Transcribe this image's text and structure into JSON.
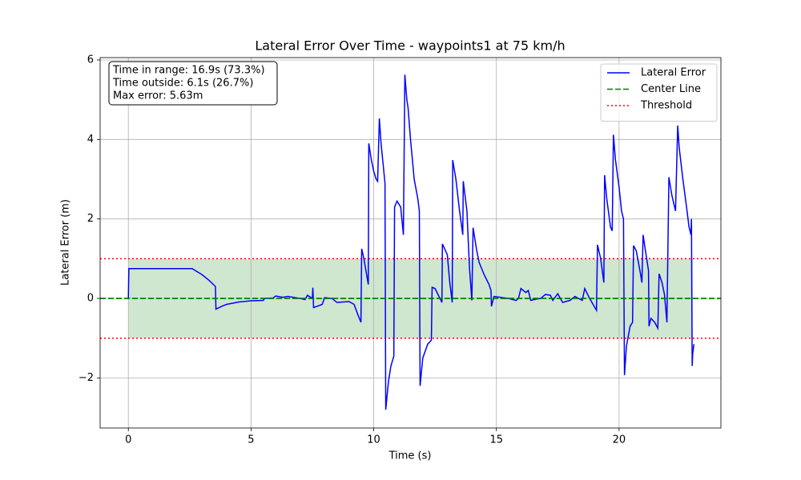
{
  "chart_data": {
    "type": "line",
    "title": "Lateral Error Over Time - waypoints1 at 75 km/h",
    "x_label": "Time (s)",
    "y_label": "Lateral Error (m)",
    "xlim": [
      -1.15,
      24.15
    ],
    "ylim": [
      -3.26,
      6.06
    ],
    "xticks": [
      0,
      5,
      10,
      15,
      20
    ],
    "yticks": [
      {
        "value": -2,
        "label": "−2"
      },
      0,
      2,
      4,
      6
    ],
    "grid": true,
    "legend": "upper right",
    "annotation": [
      "Time in range: 16.9s (73.3%)",
      "Time outside: 6.1s (26.7%)",
      "Max error: 5.63m"
    ],
    "band": {
      "x": [
        0,
        23
      ],
      "y": [
        -1,
        1
      ],
      "color": "#cfe6cf"
    },
    "x": [
      0,
      0.02,
      2.6,
      3.0,
      3.3,
      3.55,
      3.57,
      3.8,
      4.0,
      4.5,
      5.0,
      5.5,
      5.55,
      5.9,
      6.0,
      6.3,
      6.5,
      7.0,
      7.2,
      7.3,
      7.5,
      7.52,
      7.55,
      7.9,
      8.0,
      8.3,
      8.5,
      9.0,
      9.2,
      9.35,
      9.48,
      9.51,
      9.6,
      9.78,
      9.8,
      9.9,
      10.0,
      10.1,
      10.16,
      10.23,
      10.3,
      10.46,
      10.49,
      10.6,
      10.7,
      10.82,
      10.85,
      10.95,
      11.1,
      11.21,
      11.27,
      11.35,
      11.4,
      11.5,
      11.65,
      11.8,
      11.86,
      11.89,
      12.0,
      12.2,
      12.35,
      12.38,
      12.5,
      12.7,
      12.78,
      12.8,
      13.0,
      13.1,
      13.2,
      13.22,
      13.35,
      13.5,
      13.63,
      13.65,
      13.8,
      13.9,
      14.0,
      14.05,
      14.2,
      14.3,
      14.5,
      14.7,
      14.78,
      14.8,
      14.9,
      15.5,
      15.8,
      15.9,
      16.0,
      16.2,
      16.3,
      16.4,
      16.6,
      16.8,
      17.0,
      17.2,
      17.3,
      17.5,
      17.7,
      18.0,
      18.2,
      18.5,
      18.6,
      18.8,
      19.08,
      19.12,
      19.25,
      19.38,
      19.41,
      19.5,
      19.65,
      19.72,
      19.77,
      19.85,
      20.0,
      20.1,
      20.18,
      20.22,
      20.3,
      20.45,
      20.55,
      20.59,
      20.7,
      20.85,
      20.93,
      20.98,
      21.05,
      21.15,
      21.2,
      21.22,
      21.3,
      21.45,
      21.58,
      21.63,
      21.75,
      21.85,
      21.95,
      22.03,
      22.15,
      22.3,
      22.39,
      22.45,
      22.6,
      22.75,
      22.85,
      22.93,
      22.95,
      22.98,
      23.0,
      23.05
    ],
    "series": [
      {
        "name": "Lateral Error",
        "color": "#0000ff",
        "values": [
          0,
          0.75,
          0.75,
          0.6,
          0.45,
          0.3,
          -0.27,
          -0.2,
          -0.15,
          -0.09,
          -0.06,
          -0.05,
          0.0,
          0.01,
          0.06,
          0.03,
          0.05,
          0.0,
          -0.03,
          0.08,
          0.0,
          0.27,
          -0.23,
          -0.15,
          0.02,
          0.0,
          -0.1,
          -0.08,
          -0.15,
          -0.4,
          -0.6,
          1.25,
          1.0,
          0.35,
          3.9,
          3.5,
          3.2,
          3.0,
          2.95,
          4.53,
          3.9,
          2.9,
          -2.8,
          -2.1,
          -1.7,
          -1.45,
          2.3,
          2.45,
          2.3,
          1.6,
          5.63,
          5.0,
          4.8,
          4.0,
          3.0,
          2.5,
          2.2,
          -2.2,
          -1.5,
          -1.15,
          -1.05,
          0.28,
          0.25,
          0.0,
          -0.1,
          1.37,
          1.1,
          0.4,
          -0.1,
          3.48,
          3.0,
          2.2,
          1.6,
          2.95,
          2.2,
          0.8,
          -0.05,
          1.78,
          1.2,
          0.9,
          0.6,
          0.35,
          0.2,
          -0.2,
          0.05,
          0.0,
          -0.05,
          0.0,
          0.25,
          0.15,
          0.2,
          -0.05,
          -0.02,
          0.0,
          0.1,
          0.08,
          -0.05,
          0.12,
          -0.1,
          -0.05,
          0.05,
          -0.05,
          0.25,
          0.0,
          -0.3,
          1.35,
          1.0,
          0.4,
          3.1,
          2.5,
          1.8,
          1.7,
          4.12,
          3.5,
          2.8,
          2.2,
          2.0,
          -1.93,
          -1.2,
          -0.7,
          -0.6,
          1.33,
          1.2,
          0.7,
          0.4,
          1.6,
          1.3,
          0.9,
          0.7,
          -0.7,
          -0.5,
          -0.6,
          -0.75,
          0.62,
          0.4,
          0.1,
          -0.6,
          3.05,
          2.6,
          2.2,
          4.35,
          3.8,
          3.0,
          2.3,
          1.8,
          1.6,
          2.0,
          -1.7,
          -1.4,
          -1.15
        ]
      }
    ],
    "reference_lines": [
      {
        "name": "Center Line",
        "values": [
          0
        ],
        "color": "#008000",
        "style": "dashed"
      },
      {
        "name": "Threshold",
        "values": [
          1,
          -1
        ],
        "color": "#ff0000",
        "style": "dotted"
      }
    ]
  }
}
